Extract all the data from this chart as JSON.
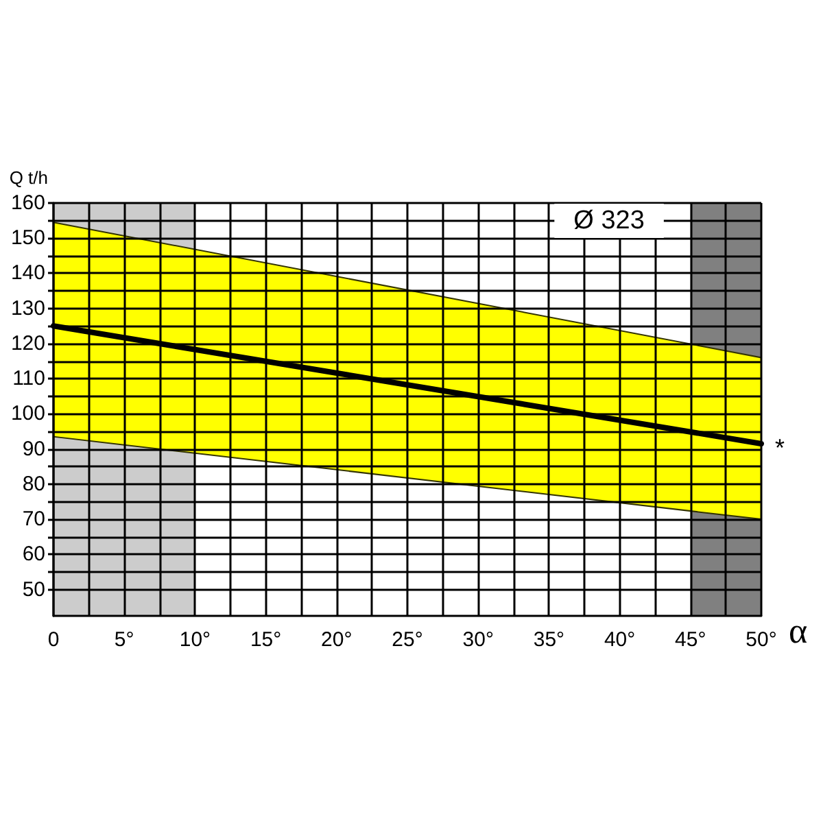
{
  "chart_data": {
    "type": "line",
    "ylabel": "Q t/h",
    "xlabel": "α",
    "xlim": [
      0,
      50
    ],
    "ylim": [
      42.5,
      160
    ],
    "xticks": [
      {
        "value": 0,
        "label": "0"
      },
      {
        "value": 2.5,
        "label": null
      },
      {
        "value": 5,
        "label": "5°"
      },
      {
        "value": 7.5,
        "label": null
      },
      {
        "value": 10,
        "label": "10°"
      },
      {
        "value": 12.5,
        "label": null
      },
      {
        "value": 15,
        "label": "15°"
      },
      {
        "value": 17.5,
        "label": null
      },
      {
        "value": 20,
        "label": "20°"
      },
      {
        "value": 22.5,
        "label": null
      },
      {
        "value": 25,
        "label": "25°"
      },
      {
        "value": 27.5,
        "label": null
      },
      {
        "value": 30,
        "label": "30°"
      },
      {
        "value": 32.5,
        "label": null
      },
      {
        "value": 35,
        "label": "35°"
      },
      {
        "value": 37.5,
        "label": null
      },
      {
        "value": 40,
        "label": "40°"
      },
      {
        "value": 42.5,
        "label": null
      },
      {
        "value": 45,
        "label": "45°"
      },
      {
        "value": 47.5,
        "label": null
      },
      {
        "value": 50,
        "label": "50°"
      }
    ],
    "yticks": [
      50,
      {
        "value": 55,
        "label": null
      },
      60,
      {
        "value": 65,
        "label": null
      },
      70,
      {
        "value": 75,
        "label": null
      },
      80,
      {
        "value": 85,
        "label": null
      },
      90,
      {
        "value": 95,
        "label": null
      },
      100,
      {
        "value": 105,
        "label": null
      },
      110,
      {
        "value": 115,
        "label": null
      },
      120,
      {
        "value": 125,
        "label": null
      },
      130,
      {
        "value": 135,
        "label": null
      },
      140,
      {
        "value": 145,
        "label": null
      },
      150,
      {
        "value": 155,
        "label": null
      },
      160
    ],
    "grid": true,
    "bands": [
      {
        "axis": "x",
        "from": 0,
        "to": 10,
        "color": "#cccccc"
      },
      {
        "axis": "x",
        "from": 45,
        "to": 50,
        "color": "#808080"
      }
    ],
    "series": [
      {
        "color": "#000000",
        "x": [
          0,
          50
        ],
        "values": [
          125,
          91.5
        ],
        "lower": [
          93.5,
          70
        ],
        "upper": [
          154.5,
          116
        ]
      }
    ],
    "annotations": [
      "Ø 323",
      {
        "text": "*",
        "x": 50,
        "y": 91.5
      }
    ]
  }
}
